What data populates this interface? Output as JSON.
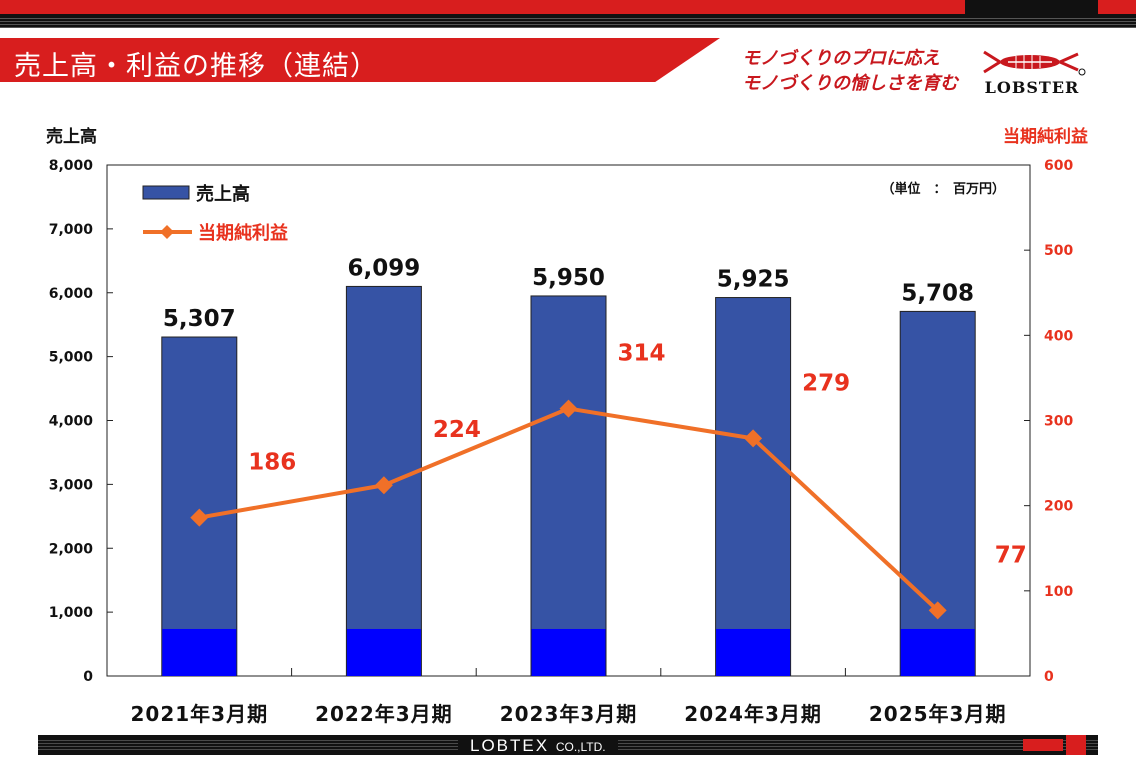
{
  "header": {
    "title": "売上高・利益の推移（連結）",
    "slogan_line1": "モノづくりのプロに応え",
    "slogan_line2": "モノづくりの愉しさを育む",
    "logo_text": "LOBSTER"
  },
  "footer": {
    "brand": "LOBTEX",
    "brand_suffix": "CO.,LTD."
  },
  "colors": {
    "bar": "#3653a5",
    "bar_bottom": "#0000ff",
    "line": "#f07028",
    "line_label": "#e8321e",
    "accent_red": "#d81e1e"
  },
  "chart_data": {
    "type": "bar",
    "categories": [
      "2021年3月期",
      "2022年3月期",
      "2023年3月期",
      "2024年3月期",
      "2025年3月期"
    ],
    "series": [
      {
        "name": "売上高",
        "type": "bar",
        "axis": "left",
        "values": [
          5307,
          6099,
          5950,
          5925,
          5708
        ],
        "labels": [
          "5,307",
          "6,099",
          "5,950",
          "5,925",
          "5,708"
        ]
      },
      {
        "name": "当期純利益",
        "type": "line",
        "axis": "right",
        "values": [
          186,
          224,
          314,
          279,
          77
        ],
        "labels": [
          "186",
          "224",
          "314",
          "279",
          "77"
        ]
      }
    ],
    "y_left": {
      "label": "売上高",
      "ylim": [
        0,
        8000
      ],
      "ticks": [
        "0",
        "1,000",
        "2,000",
        "3,000",
        "4,000",
        "5,000",
        "6,000",
        "7,000",
        "8,000"
      ]
    },
    "y_right": {
      "label": "当期純利益",
      "ylim": [
        0,
        600
      ],
      "ticks": [
        "0",
        "100",
        "200",
        "300",
        "400",
        "500",
        "600"
      ]
    },
    "unit_note": "（単位　：　百万円）",
    "legend_position": "top-left",
    "grid": false
  }
}
